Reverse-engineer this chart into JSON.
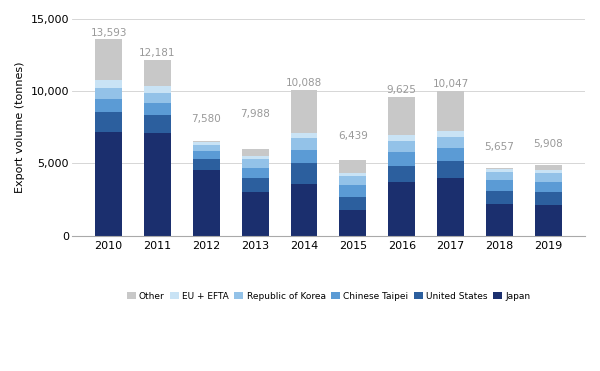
{
  "years": [
    2010,
    2011,
    2012,
    2013,
    2014,
    2015,
    2016,
    2017,
    2018,
    2019
  ],
  "totals": [
    13593,
    12181,
    7580,
    7988,
    10088,
    6439,
    9625,
    10047,
    5657,
    5908
  ],
  "series": {
    "Japan": [
      7200,
      7100,
      4550,
      3000,
      3600,
      1750,
      3700,
      4000,
      2200,
      2100
    ],
    "United States": [
      1350,
      1250,
      750,
      1000,
      1400,
      950,
      1150,
      1150,
      900,
      900
    ],
    "Chinese Taipei": [
      900,
      850,
      550,
      700,
      950,
      800,
      950,
      950,
      750,
      750
    ],
    "Republic of Korea": [
      750,
      650,
      430,
      580,
      800,
      600,
      750,
      750,
      580,
      600
    ],
    "EU + EFTA": [
      600,
      500,
      200,
      270,
      350,
      250,
      400,
      400,
      220,
      200
    ],
    "Other": [
      2793,
      1831,
      100,
      438,
      2988,
      889,
      2675,
      2797,
      7,
      358
    ]
  },
  "colors": {
    "Japan": "#1b2f6e",
    "United States": "#2c5f9e",
    "Chinese Taipei": "#5b9bd5",
    "Republic of Korea": "#93c2e8",
    "EU + EFTA": "#c9e3f5",
    "Other": "#c8c8c8"
  },
  "ylabel": "Export volume (tonnes)",
  "ylim": [
    0,
    15000
  ],
  "yticks": [
    0,
    5000,
    10000,
    15000
  ],
  "background_color": "#ffffff",
  "grid_color": "#d0d0d0",
  "bar_width": 0.55,
  "annotation_color": "#999999",
  "annotation_fontsize": 7.5
}
